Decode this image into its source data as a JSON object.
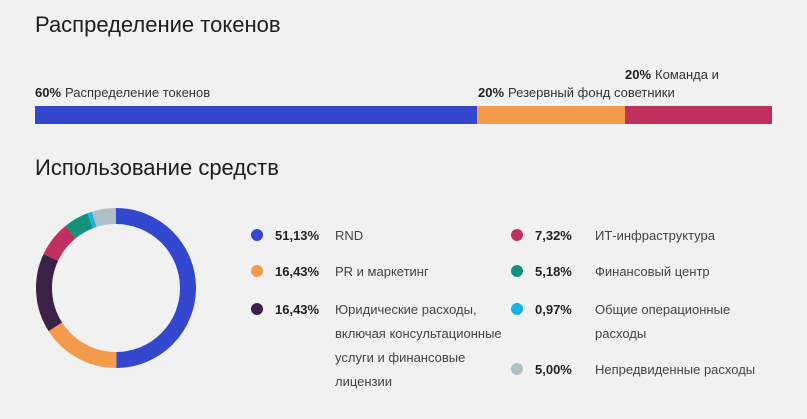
{
  "tokens": {
    "title": "Распределение токенов",
    "segments": [
      {
        "pct": "60%",
        "label": "Распределение токенов",
        "value": 60,
        "color": "#3348cf"
      },
      {
        "pct": "20%",
        "label": "Резервный фонд советники",
        "value": 20,
        "color": "#f39a4d"
      },
      {
        "pct": "20%",
        "label": "Команда и",
        "value": 20,
        "color": "#c1305d"
      }
    ]
  },
  "funds": {
    "title": "Использование средств",
    "items": [
      {
        "pct": "51,13%",
        "label": "RND",
        "value": 51.13,
        "color": "#3348cf"
      },
      {
        "pct": "16,43%",
        "label": "PR и маркетинг",
        "value": 16.43,
        "color": "#f39a4d"
      },
      {
        "pct": "16,43%",
        "label": "Юридические расходы, включая консультационные услуги и финансовые лицензии",
        "value": 16.43,
        "color": "#3b2145"
      },
      {
        "pct": "7,32%",
        "label": "ИТ-инфраструктура",
        "value": 7.32,
        "color": "#c1305d"
      },
      {
        "pct": "5,18%",
        "label": "Финансовый центр",
        "value": 5.18,
        "color": "#13917b"
      },
      {
        "pct": "0,97%",
        "label": "Общие операционные расходы",
        "value": 0.97,
        "color": "#19b1e5"
      },
      {
        "pct": "5,00%",
        "label": "Непредвиденные расходы",
        "value": 5.0,
        "color": "#aebfc6"
      }
    ]
  },
  "chart_data": [
    {
      "type": "bar",
      "title": "Распределение токенов",
      "categories": [
        "Распределение токенов",
        "Резервный фонд советники",
        "Команда и"
      ],
      "values": [
        60,
        20,
        20
      ],
      "stacked": true
    },
    {
      "type": "pie",
      "title": "Использование средств",
      "categories": [
        "RND",
        "PR и маркетинг",
        "Юридические расходы, включая консультационные услуги и финансовые лицензии",
        "ИТ-инфраструктура",
        "Финансовый центр",
        "Общие операционные расходы",
        "Непредвиденные расходы"
      ],
      "values": [
        51.13,
        16.43,
        16.43,
        7.32,
        5.18,
        0.97,
        5.0
      ],
      "donut": true
    }
  ]
}
